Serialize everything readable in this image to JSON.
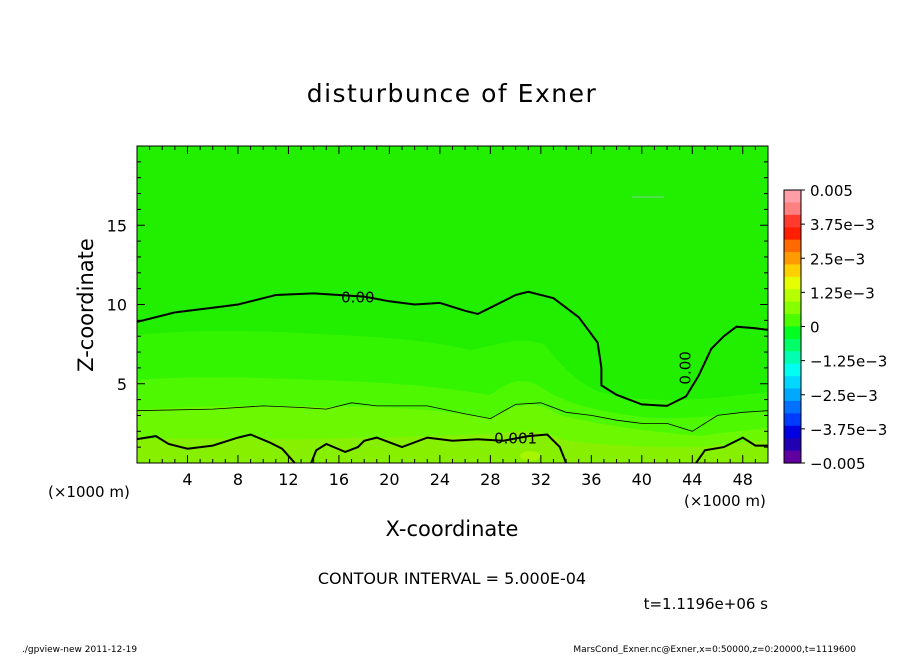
{
  "chart_data": {
    "type": "contour",
    "title": "disturbunce of Exner",
    "xlabel": "X-coordinate",
    "ylabel": "Z-coordinate",
    "x_unit_left": "(×1000 m)",
    "x_unit_right": "(×1000 m)",
    "xlim": [
      0,
      50
    ],
    "ylim": [
      0,
      20
    ],
    "x_ticks": [
      4,
      8,
      12,
      16,
      20,
      24,
      28,
      32,
      36,
      40,
      44,
      48
    ],
    "y_ticks": [
      5,
      10,
      15
    ],
    "contour_interval_text": "CONTOUR INTERVAL = 5.000E-04",
    "time_text": "t=1.1196e+06 s",
    "contour_labels": [
      {
        "text": "0.00",
        "x": 17.5,
        "z": 10.4
      },
      {
        "text": "0.00",
        "x": 43.5,
        "z": 6.0,
        "rotate": -90
      },
      {
        "text": "0.001",
        "x": 30.0,
        "z": 1.5
      }
    ],
    "contours": [
      {
        "level": "0.00",
        "style": "thick",
        "points": [
          [
            0,
            8.9
          ],
          [
            3,
            9.5
          ],
          [
            6,
            9.8
          ],
          [
            8,
            10.0
          ],
          [
            10,
            10.4
          ],
          [
            11,
            10.6
          ],
          [
            14,
            10.7
          ],
          [
            16,
            10.6
          ],
          [
            18,
            10.5
          ],
          [
            20,
            10.2
          ],
          [
            22,
            10.0
          ],
          [
            24,
            10.1
          ],
          [
            26,
            9.6
          ],
          [
            27,
            9.4
          ],
          [
            28,
            9.8
          ],
          [
            30,
            10.6
          ],
          [
            31,
            10.8
          ],
          [
            33,
            10.4
          ],
          [
            35,
            9.2
          ],
          [
            36.5,
            7.6
          ],
          [
            36.8,
            6.0
          ],
          [
            36.8,
            4.9
          ],
          [
            38,
            4.3
          ],
          [
            40,
            3.7
          ],
          [
            42,
            3.6
          ],
          [
            43.5,
            4.2
          ],
          [
            44.5,
            5.5
          ],
          [
            45.5,
            7.2
          ],
          [
            46.5,
            8.0
          ],
          [
            47.5,
            8.6
          ],
          [
            49,
            8.5
          ],
          [
            50,
            8.4
          ]
        ]
      },
      {
        "level": "5.000E-04",
        "style": "thin",
        "points": [
          [
            0,
            3.3
          ],
          [
            6,
            3.4
          ],
          [
            10,
            3.6
          ],
          [
            13,
            3.5
          ],
          [
            15,
            3.4
          ],
          [
            17,
            3.8
          ],
          [
            19,
            3.6
          ],
          [
            23,
            3.6
          ],
          [
            26,
            3.1
          ],
          [
            28,
            2.8
          ],
          [
            30,
            3.7
          ],
          [
            32,
            3.8
          ],
          [
            34,
            3.2
          ],
          [
            36,
            3.0
          ],
          [
            38,
            2.7
          ],
          [
            40,
            2.5
          ],
          [
            42,
            2.5
          ],
          [
            44,
            2.0
          ],
          [
            46,
            3.0
          ],
          [
            48,
            3.2
          ],
          [
            50,
            3.3
          ]
        ]
      },
      {
        "level": "0.001",
        "style": "thick",
        "points": [
          [
            0,
            1.5
          ],
          [
            1.5,
            1.7
          ],
          [
            2.5,
            1.2
          ],
          [
            4,
            0.9
          ],
          [
            6,
            1.1
          ],
          [
            8,
            1.6
          ],
          [
            9,
            1.8
          ],
          [
            10.5,
            1.3
          ],
          [
            11.5,
            0.9
          ],
          [
            12.5,
            0
          ]
        ]
      },
      {
        "level": "0.001",
        "style": "thick",
        "points": [
          [
            13.8,
            0
          ],
          [
            14.2,
            0.8
          ],
          [
            15,
            1.2
          ],
          [
            16.5,
            0.7
          ],
          [
            17.5,
            1.0
          ],
          [
            18,
            1.4
          ],
          [
            19,
            1.6
          ],
          [
            21,
            1.0
          ],
          [
            23,
            1.6
          ],
          [
            25,
            1.4
          ],
          [
            27,
            1.5
          ],
          [
            29,
            1.4
          ],
          [
            31,
            1.7
          ],
          [
            32.5,
            1.8
          ],
          [
            33.5,
            1.0
          ],
          [
            34,
            0
          ]
        ]
      },
      {
        "level": "0.001",
        "style": "thick",
        "points": [
          [
            44.3,
            0
          ],
          [
            45,
            0.8
          ],
          [
            46.5,
            1.0
          ],
          [
            48,
            1.6
          ],
          [
            49,
            1.1
          ],
          [
            50,
            1.1
          ]
        ]
      }
    ],
    "colorbar": {
      "labels": [
        "0.005",
        "3.75e−3",
        "2.5e−3",
        "1.25e−3",
        "0",
        "−1.25e−3",
        "−2.5e−3",
        "−3.75e−3",
        "−0.005"
      ],
      "colors": [
        "#ff9ea6",
        "#ff8080",
        "#ff3b30",
        "#ff1e00",
        "#ff6a00",
        "#ff9a00",
        "#ffd000",
        "#e6ff00",
        "#b6ff00",
        "#86ff00",
        "#4cff00",
        "#00ff20",
        "#00ff66",
        "#00ffb0",
        "#00fff0",
        "#00d8ff",
        "#00a8ff",
        "#0070ff",
        "#003cff",
        "#0000e0",
        "#2000b0",
        "#6000a0"
      ]
    }
  },
  "footer": {
    "left": "./gpview-new  2011-12-19",
    "right": "MarsCond_Exner.nc@Exner,x=0:50000,z=0:20000,t=1119600"
  }
}
